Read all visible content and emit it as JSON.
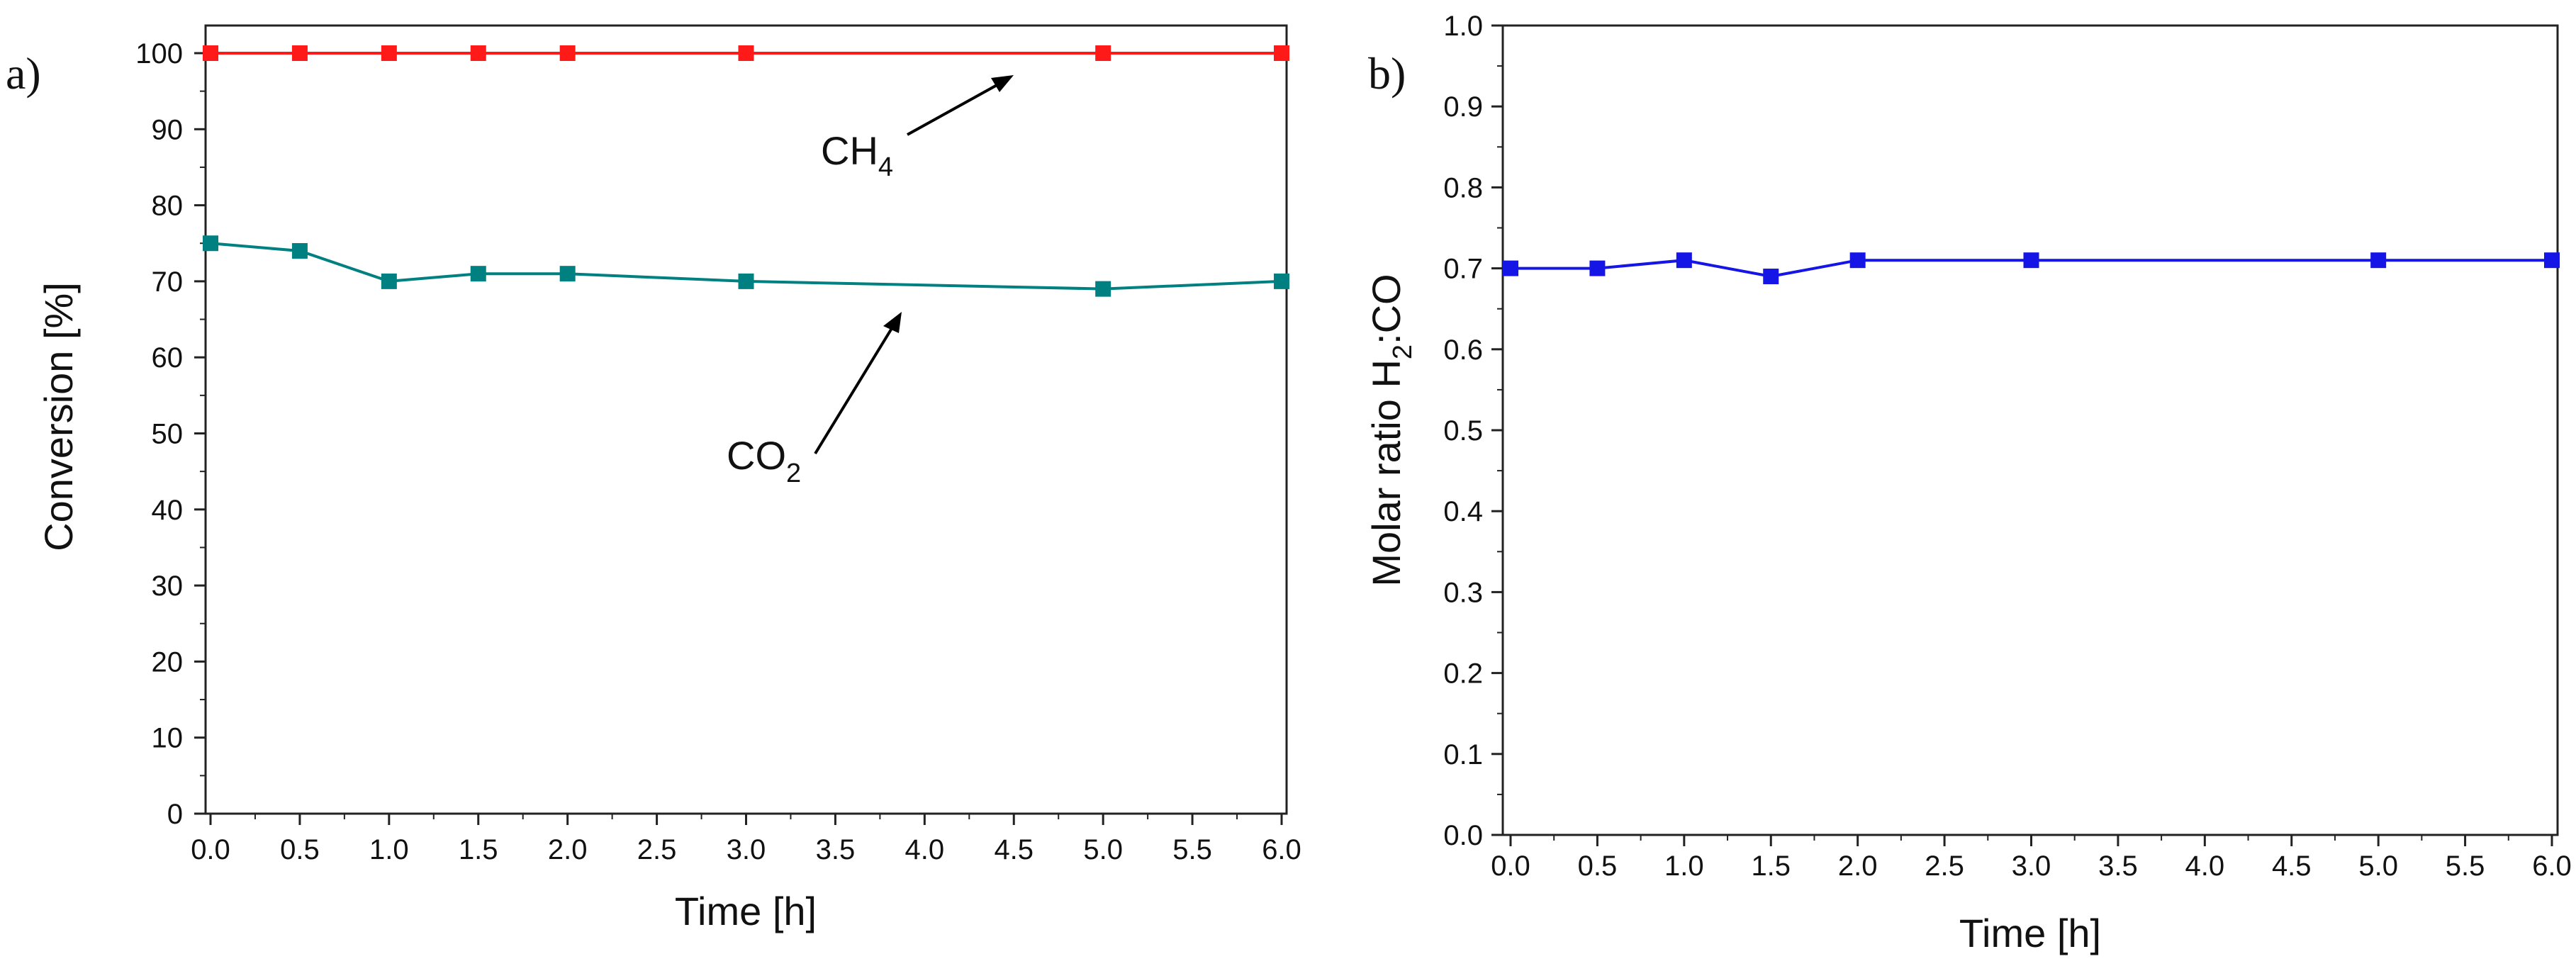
{
  "chart_data": [
    {
      "panel_label": "a)",
      "type": "line",
      "xlabel": "Time [h]",
      "ylabel": "Conversion [%]",
      "xlim": [
        0.0,
        6.0
      ],
      "ylim": [
        0,
        100
      ],
      "xticks": [
        "0.0",
        "0.5",
        "1.0",
        "1.5",
        "2.0",
        "2.5",
        "3.0",
        "3.5",
        "4.0",
        "4.5",
        "5.0",
        "5.5",
        "6.0"
      ],
      "yticks": [
        "0",
        "10",
        "20",
        "30",
        "40",
        "50",
        "60",
        "70",
        "80",
        "90",
        "100"
      ],
      "series": [
        {
          "name": "CH4",
          "label": "CH",
          "label_sub": "4",
          "color": "#ff1a1a",
          "x": [
            0,
            0.5,
            1,
            1.5,
            2,
            3,
            5,
            6
          ],
          "y": [
            100,
            100,
            100,
            100,
            100,
            100,
            100,
            100
          ]
        },
        {
          "name": "CO2",
          "label": "CO",
          "label_sub": "2",
          "color": "#008080",
          "x": [
            0,
            0.5,
            1,
            1.5,
            2,
            3,
            5,
            6
          ],
          "y": [
            75,
            74,
            70,
            71,
            71,
            70,
            69,
            70
          ]
        }
      ],
      "grid": false
    },
    {
      "panel_label": "b)",
      "type": "line",
      "xlabel": "Time [h]",
      "ylabel_text": "Molar ratio H",
      "ylabel_sub": "2",
      "ylabel_tail": ":CO",
      "xlim": [
        0.0,
        6.0
      ],
      "ylim": [
        0.0,
        1.0
      ],
      "xticks": [
        "0.0",
        "0.5",
        "1.0",
        "1.5",
        "2.0",
        "2.5",
        "3.0",
        "3.5",
        "4.0",
        "4.5",
        "5.0",
        "5.5",
        "6.0"
      ],
      "yticks": [
        "0.0",
        "0.1",
        "0.2",
        "0.3",
        "0.4",
        "0.5",
        "0.6",
        "0.7",
        "0.8",
        "0.9",
        "1.0"
      ],
      "series": [
        {
          "name": "H2:CO",
          "color": "#1515e6",
          "x": [
            0,
            0.5,
            1,
            1.5,
            2,
            3,
            5,
            6
          ],
          "y": [
            0.7,
            0.7,
            0.71,
            0.69,
            0.71,
            0.71,
            0.71,
            0.71
          ]
        }
      ],
      "grid": false
    }
  ]
}
